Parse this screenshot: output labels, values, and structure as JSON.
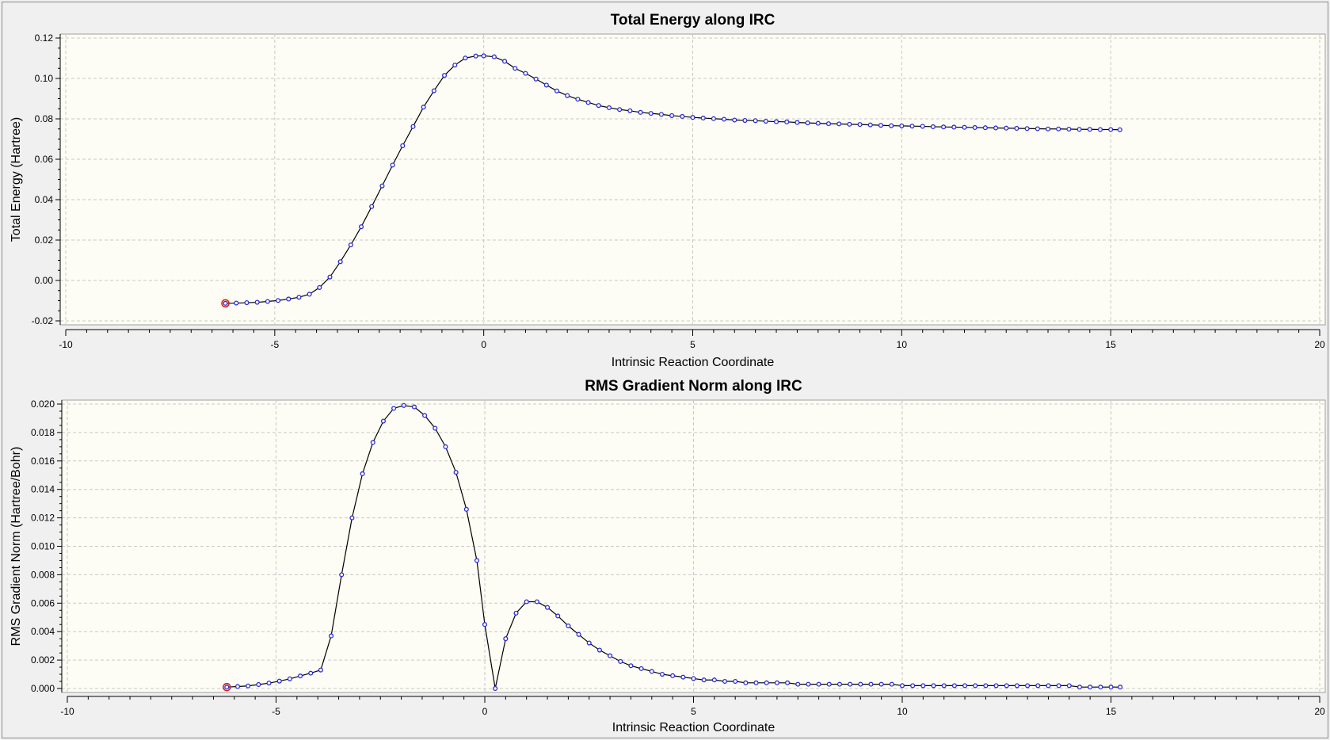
{
  "chart_data": [
    {
      "type": "line",
      "title": "Total Energy along IRC",
      "xlabel": "Intrinsic Reaction Coordinate",
      "ylabel": "Total Energy (Hartree)",
      "xlim": [
        -10,
        20
      ],
      "ylim": [
        -0.02,
        0.12
      ],
      "xticks": [
        "-10",
        "-5",
        "0",
        "5",
        "10",
        "15",
        "20"
      ],
      "yticks": [
        "-0.02",
        "0.00",
        "0.02",
        "0.04",
        "0.06",
        "0.08",
        "0.10",
        "0.12"
      ],
      "grid": true,
      "marker_color": "#2b2bd6",
      "line_color": "#000000",
      "highlight_color": "#d42020",
      "highlight_index": 0,
      "series": [
        {
          "x": [
            -6.18,
            -5.92,
            -5.67,
            -5.42,
            -5.17,
            -4.92,
            -4.67,
            -4.42,
            -4.17,
            -3.93,
            -3.68,
            -3.43,
            -3.18,
            -2.93,
            -2.68,
            -2.43,
            -2.18,
            -1.94,
            -1.69,
            -1.44,
            -1.19,
            -0.94,
            -0.69,
            -0.44,
            -0.19,
            0.0,
            0.25,
            0.5,
            0.75,
            1.0,
            1.25,
            1.5,
            1.75,
            2.0,
            2.25,
            2.5,
            2.75,
            3.0,
            3.25,
            3.5,
            3.75,
            4.0,
            4.25,
            4.5,
            4.75,
            5.0,
            5.25,
            5.5,
            5.75,
            6.0,
            6.25,
            6.5,
            6.75,
            7.0,
            7.25,
            7.5,
            7.75,
            8.0,
            8.25,
            8.5,
            8.75,
            9.0,
            9.25,
            9.5,
            9.75,
            10.0,
            10.25,
            10.5,
            10.75,
            11.0,
            11.25,
            11.5,
            11.75,
            12.0,
            12.25,
            12.5,
            12.75,
            13.0,
            13.25,
            13.5,
            13.75,
            14.0,
            14.25,
            14.5,
            14.75,
            15.0,
            15.22
          ],
          "y": [
            -0.0113,
            -0.0112,
            -0.011,
            -0.0108,
            -0.0104,
            -0.0099,
            -0.0092,
            -0.0083,
            -0.0068,
            -0.0035,
            0.0017,
            0.0093,
            0.0176,
            0.0266,
            0.0366,
            0.0468,
            0.0571,
            0.0667,
            0.0762,
            0.0858,
            0.0939,
            0.1015,
            0.1066,
            0.1101,
            0.1111,
            0.1112,
            0.1107,
            0.1085,
            0.105,
            0.1025,
            0.0997,
            0.0967,
            0.0938,
            0.0915,
            0.0897,
            0.0881,
            0.0866,
            0.0855,
            0.0846,
            0.084,
            0.0832,
            0.0827,
            0.0822,
            0.0816,
            0.0812,
            0.0807,
            0.0804,
            0.0801,
            0.0798,
            0.0794,
            0.0792,
            0.0791,
            0.0788,
            0.0786,
            0.0785,
            0.0782,
            0.078,
            0.0778,
            0.0776,
            0.0775,
            0.0773,
            0.0772,
            0.077,
            0.0768,
            0.0766,
            0.0765,
            0.0764,
            0.0763,
            0.0761,
            0.076,
            0.0759,
            0.0758,
            0.0757,
            0.0756,
            0.0755,
            0.0754,
            0.0753,
            0.0752,
            0.0751,
            0.075,
            0.075,
            0.0749,
            0.0748,
            0.0748,
            0.0747,
            0.0747,
            0.0746
          ]
        }
      ]
    },
    {
      "type": "line",
      "title": "RMS Gradient Norm along IRC",
      "xlabel": "Intrinsic Reaction Coordinate",
      "ylabel": "RMS Gradient Norm (Hartree/Bohr)",
      "xlim": [
        -10,
        20
      ],
      "ylim": [
        0,
        0.02
      ],
      "xticks": [
        "-10",
        "-5",
        "0",
        "5",
        "10",
        "15",
        "20"
      ],
      "yticks": [
        "0.000",
        "0.002",
        "0.004",
        "0.006",
        "0.008",
        "0.010",
        "0.012",
        "0.014",
        "0.016",
        "0.018",
        "0.020"
      ],
      "grid": true,
      "marker_color": "#2b2bd6",
      "line_color": "#000000",
      "highlight_color": "#d42020",
      "highlight_index": 0,
      "series": [
        {
          "x": [
            -6.18,
            -5.92,
            -5.67,
            -5.42,
            -5.17,
            -4.92,
            -4.67,
            -4.42,
            -4.17,
            -3.93,
            -3.68,
            -3.43,
            -3.18,
            -2.93,
            -2.68,
            -2.43,
            -2.18,
            -1.94,
            -1.69,
            -1.44,
            -1.19,
            -0.94,
            -0.69,
            -0.44,
            -0.19,
            0.0,
            0.25,
            0.5,
            0.75,
            1.0,
            1.25,
            1.5,
            1.75,
            2.0,
            2.25,
            2.5,
            2.75,
            3.0,
            3.25,
            3.5,
            3.75,
            4.0,
            4.25,
            4.5,
            4.75,
            5.0,
            5.25,
            5.5,
            5.75,
            6.0,
            6.25,
            6.5,
            6.75,
            7.0,
            7.25,
            7.5,
            7.75,
            8.0,
            8.25,
            8.5,
            8.75,
            9.0,
            9.25,
            9.5,
            9.75,
            10.0,
            10.25,
            10.5,
            10.75,
            11.0,
            11.25,
            11.5,
            11.75,
            12.0,
            12.25,
            12.5,
            12.75,
            13.0,
            13.25,
            13.5,
            13.75,
            14.0,
            14.25,
            14.5,
            14.75,
            15.0,
            15.22
          ],
          "y": [
            0.0001,
            0.00014,
            0.00018,
            0.00028,
            0.00038,
            0.00052,
            0.00068,
            0.00088,
            0.00108,
            0.0013,
            0.0037,
            0.008,
            0.012,
            0.0151,
            0.0173,
            0.0188,
            0.0197,
            0.0199,
            0.0198,
            0.0192,
            0.0183,
            0.017,
            0.0152,
            0.0126,
            0.009,
            0.0045,
            0.0,
            0.0035,
            0.0053,
            0.0061,
            0.0061,
            0.0057,
            0.0051,
            0.0044,
            0.0038,
            0.0032,
            0.0027,
            0.0023,
            0.0019,
            0.0016,
            0.0014,
            0.0012,
            0.001,
            0.0009,
            0.0008,
            0.0007,
            0.0006,
            0.0006,
            0.0005,
            0.0005,
            0.0004,
            0.0004,
            0.0004,
            0.0004,
            0.0004,
            0.0003,
            0.0003,
            0.0003,
            0.0003,
            0.0003,
            0.0003,
            0.0003,
            0.0003,
            0.0003,
            0.0003,
            0.0002,
            0.0002,
            0.0002,
            0.0002,
            0.0002,
            0.0002,
            0.0002,
            0.0002,
            0.0002,
            0.0002,
            0.0002,
            0.0002,
            0.0002,
            0.0002,
            0.0002,
            0.0002,
            0.0002,
            0.0001,
            0.0001,
            0.0001,
            0.0001,
            0.0001
          ]
        }
      ]
    }
  ]
}
